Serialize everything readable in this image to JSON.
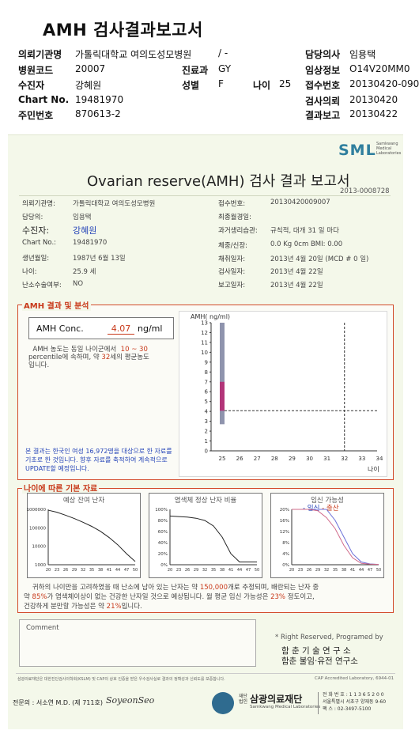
{
  "title": "AMH 검사결과보고서",
  "header": {
    "institution_label": "의뢰기관명",
    "institution": "가톨릭대학교 여의도성모병원",
    "dept_dash": "/ -",
    "doctor_label": "담당의사",
    "doctor": "임용택",
    "hospital_code_label": "병원코드",
    "hospital_code": "20007",
    "clinic_label": "진료과",
    "clinic": "GY",
    "clinical_info_label": "임상정보",
    "clinical_info": "O14V20MM0",
    "patient_label": "수진자",
    "patient": "강혜원",
    "sex_label": "성별",
    "sex": "F",
    "age_label": "나이",
    "age": "25",
    "receipt_no_label": "접수번호",
    "receipt_no": "20130420-090",
    "chart_label": "Chart No.",
    "chart_no": "19481970",
    "request_label": "검사의뢰",
    "request_date": "20130420",
    "id_label": "주민번호",
    "id_no": "870613-2",
    "report_label": "결과보고",
    "report_date": "20130422"
  },
  "report": {
    "brand": "SML",
    "brand_sub": "Samkwang Medical Laboratories",
    "title": "Ovarian reserve(AMH) 검사 결과 보고서",
    "doc_no": "2013-0008728",
    "left_fields": [
      {
        "label": "의뢰기관명:",
        "value": "가톨릭대학교 여의도성모병원"
      },
      {
        "label": "담당의:",
        "value": "임용택"
      },
      {
        "label": "수진자:",
        "value": "강혜원"
      },
      {
        "label": "Chart No.:",
        "value": "19481970"
      },
      {
        "label": "생년월일:",
        "value": "1987년 6월 13일"
      },
      {
        "label": "나이:",
        "value": "25.9 세"
      },
      {
        "label": "난소수술여부:",
        "value": "NO"
      }
    ],
    "right_fields": [
      {
        "label": "접수번호:",
        "value": "20130420009007"
      },
      {
        "label": "최종월경일:",
        "value": ""
      },
      {
        "label": "과거생리습관:",
        "value": "규칙적, 대개  31 일 마다"
      },
      {
        "label": "체중/신장:",
        "value": "0.0  Kg      0cm    BMI:  0.00"
      },
      {
        "label": "채취일자:",
        "value": "2013년 4월 20일   (MCD # 0 일)"
      },
      {
        "label": "검사일자:",
        "value": "2013년 4월 22일"
      },
      {
        "label": "보고일자:",
        "value": "2013년 4월 22일"
      }
    ],
    "amh_section_title": "AMH 결과 및 분석",
    "amh_conc_label": "AMH Conc.",
    "amh_value": "4.07",
    "amh_unit": "ng/ml",
    "interp_1": "AMH 농도는 동일 나이군에서",
    "pct_low": "10",
    "pct_sep": "~",
    "pct_high": "30",
    "interp_2": "percentile에 속하며, 약",
    "equiv_age": "32",
    "interp_3": "세의 평균농도",
    "interp_4": "입니다.",
    "note_blue": "본 결과는 한국인 여성 16,972명을 대상으로 한 자료를 기초로 한 것입니다. 향후 자료를 축적하여 계속적으로 UPDATE할 예정입니다.",
    "age_section_title": "나이에 따른 기본 자료",
    "chart_titles": [
      "예상 잔여 난자",
      "염색체 정상 난자 비율",
      "임신 가능성"
    ],
    "chart3_legend": [
      "- 임신",
      "- 출산"
    ],
    "summary_1": "귀하의 나이만을 고려하였을 때 난소에 남아 있는 난자는 약",
    "follicles": "150,000",
    "summary_2": "개로 추정되며, 배란되는 난자 중",
    "summary_3": "약",
    "normal_pct": "85%",
    "summary_4": "가 염색체이상이 없는 건강한 난자일 것으로 예상됩니다. 월 평균 임신 가능성은",
    "pregnancy_pct": "23%",
    "summary_5": "정도이고,",
    "summary_6": "건강하게 분만할 가능성은 약",
    "birth_pct": "21%",
    "summary_7": "입니다.",
    "comment_label": "Comment",
    "rights": "* Right Reserved, Programed by",
    "lab1": "함 춘  기 술  연 구 소",
    "lab2": "함춘 불임·유전 연구소",
    "footer_small": "삼광의료재단은 대한진단검사의학회(KSLM) 및 CAP의 상호 인증을 받은 우수검사실로 결과의 정확성과 신뢰도를 보증합니다.",
    "cap": "CAP Accredited Laboratory, 6944-01",
    "specialist": "전문의 : 서소연 M.D. (제 711호)",
    "signature": "SoyeonSeo",
    "foundation_tag": "재단법인",
    "foundation": "삼광의료재단",
    "foundation_en": "Samkwang Medical Laboratories",
    "contact": [
      "전 화 번 호 : 1 1 3 6 5 2 0 0",
      "서울특별시 서초구 양재동 9-60",
      "팩    스 : 02-3497-5100"
    ]
  },
  "chart_data": [
    {
      "type": "bar",
      "title": "",
      "ylabel": "AMH( ng/ml)",
      "xlabel": "나이",
      "x": [
        25,
        26,
        27,
        28,
        29,
        30,
        31,
        32,
        33,
        34
      ],
      "ylim": [
        0,
        13
      ],
      "yticks": [
        0,
        1,
        2,
        3,
        4,
        5,
        6,
        7,
        8,
        9,
        10,
        11,
        12,
        13
      ],
      "range_bar": {
        "age": 25,
        "low": 2.7,
        "high": 13,
        "highlight_low": 4.07,
        "highlight_high": 7.0
      },
      "patient_value": 4.07,
      "equiv_age": 32,
      "colors": {
        "range": "#8f94ad",
        "highlight": "#b23579"
      }
    },
    {
      "type": "line",
      "title": "예상 잔여 난자",
      "yscale": "log",
      "yticks": [
        1000000,
        100000,
        10000,
        1000
      ],
      "x": [
        20,
        23,
        26,
        29,
        32,
        35,
        38,
        41,
        44,
        47,
        50
      ],
      "y": [
        900000,
        700000,
        480000,
        320000,
        200000,
        120000,
        65000,
        30000,
        12000,
        4000,
        1500
      ]
    },
    {
      "type": "line",
      "title": "염색체 정상 난자 비율",
      "yticks": [
        "100%",
        "80%",
        "60%",
        "40%",
        "20%",
        "0%"
      ],
      "x": [
        20,
        23,
        26,
        29,
        32,
        35,
        38,
        41,
        44,
        47,
        50
      ],
      "y": [
        88,
        87,
        86,
        84,
        80,
        70,
        50,
        20,
        5,
        5,
        5
      ]
    },
    {
      "type": "line",
      "title": "임신 가능성",
      "yticks": [
        "20%",
        "16%",
        "12%",
        "8%",
        "4%",
        "0%"
      ],
      "x": [
        20,
        23,
        26,
        29,
        32,
        35,
        38,
        41,
        44,
        47,
        50
      ],
      "series": [
        {
          "name": "임신",
          "values": [
            23,
            23,
            22.5,
            22,
            20,
            16,
            10,
            4,
            1,
            0.3,
            0.1
          ]
        },
        {
          "name": "출산",
          "values": [
            21,
            21,
            20.5,
            19.5,
            17,
            13,
            7,
            2.5,
            0.5,
            0.2,
            0.1
          ]
        }
      ]
    }
  ]
}
